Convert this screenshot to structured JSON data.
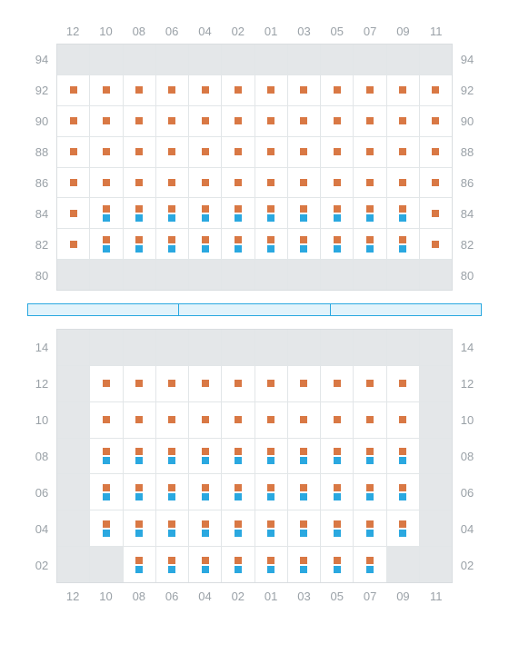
{
  "colors": {
    "orange": "#d97844",
    "blue": "#2aa8e0",
    "gray_cell": "#e4e7e9",
    "grid_border": "#d9dde0",
    "grid_line": "#e2e6e8",
    "label_color": "#9aa1a7",
    "divider_border": "#2aa8e0",
    "divider_fill": "#e2f3fb",
    "background": "#ffffff"
  },
  "columns": [
    "12",
    "10",
    "08",
    "06",
    "04",
    "02",
    "01",
    "03",
    "05",
    "07",
    "09",
    "11"
  ],
  "top": {
    "row_labels": [
      "94",
      "92",
      "90",
      "88",
      "86",
      "84",
      "82",
      "80"
    ],
    "cells": [
      [
        {
          "g": 1
        },
        {
          "g": 1
        },
        {
          "g": 1
        },
        {
          "g": 1
        },
        {
          "g": 1
        },
        {
          "g": 1
        },
        {
          "g": 1
        },
        {
          "g": 1
        },
        {
          "g": 1
        },
        {
          "g": 1
        },
        {
          "g": 1
        },
        {
          "g": 1
        }
      ],
      [
        {
          "m": [
            "o"
          ]
        },
        {
          "m": [
            "o"
          ]
        },
        {
          "m": [
            "o"
          ]
        },
        {
          "m": [
            "o"
          ]
        },
        {
          "m": [
            "o"
          ]
        },
        {
          "m": [
            "o"
          ]
        },
        {
          "m": [
            "o"
          ]
        },
        {
          "m": [
            "o"
          ]
        },
        {
          "m": [
            "o"
          ]
        },
        {
          "m": [
            "o"
          ]
        },
        {
          "m": [
            "o"
          ]
        },
        {
          "m": [
            "o"
          ]
        }
      ],
      [
        {
          "m": [
            "o"
          ]
        },
        {
          "m": [
            "o"
          ]
        },
        {
          "m": [
            "o"
          ]
        },
        {
          "m": [
            "o"
          ]
        },
        {
          "m": [
            "o"
          ]
        },
        {
          "m": [
            "o"
          ]
        },
        {
          "m": [
            "o"
          ]
        },
        {
          "m": [
            "o"
          ]
        },
        {
          "m": [
            "o"
          ]
        },
        {
          "m": [
            "o"
          ]
        },
        {
          "m": [
            "o"
          ]
        },
        {
          "m": [
            "o"
          ]
        }
      ],
      [
        {
          "m": [
            "o"
          ]
        },
        {
          "m": [
            "o"
          ]
        },
        {
          "m": [
            "o"
          ]
        },
        {
          "m": [
            "o"
          ]
        },
        {
          "m": [
            "o"
          ]
        },
        {
          "m": [
            "o"
          ]
        },
        {
          "m": [
            "o"
          ]
        },
        {
          "m": [
            "o"
          ]
        },
        {
          "m": [
            "o"
          ]
        },
        {
          "m": [
            "o"
          ]
        },
        {
          "m": [
            "o"
          ]
        },
        {
          "m": [
            "o"
          ]
        }
      ],
      [
        {
          "m": [
            "o"
          ]
        },
        {
          "m": [
            "o"
          ]
        },
        {
          "m": [
            "o"
          ]
        },
        {
          "m": [
            "o"
          ]
        },
        {
          "m": [
            "o"
          ]
        },
        {
          "m": [
            "o"
          ]
        },
        {
          "m": [
            "o"
          ]
        },
        {
          "m": [
            "o"
          ]
        },
        {
          "m": [
            "o"
          ]
        },
        {
          "m": [
            "o"
          ]
        },
        {
          "m": [
            "o"
          ]
        },
        {
          "m": [
            "o"
          ]
        }
      ],
      [
        {
          "m": [
            "o"
          ]
        },
        {
          "m": [
            "o",
            "b"
          ]
        },
        {
          "m": [
            "o",
            "b"
          ]
        },
        {
          "m": [
            "o",
            "b"
          ]
        },
        {
          "m": [
            "o",
            "b"
          ]
        },
        {
          "m": [
            "o",
            "b"
          ]
        },
        {
          "m": [
            "o",
            "b"
          ]
        },
        {
          "m": [
            "o",
            "b"
          ]
        },
        {
          "m": [
            "o",
            "b"
          ]
        },
        {
          "m": [
            "o",
            "b"
          ]
        },
        {
          "m": [
            "o",
            "b"
          ]
        },
        {
          "m": [
            "o"
          ]
        }
      ],
      [
        {
          "m": [
            "o"
          ]
        },
        {
          "m": [
            "o",
            "b"
          ]
        },
        {
          "m": [
            "o",
            "b"
          ]
        },
        {
          "m": [
            "o",
            "b"
          ]
        },
        {
          "m": [
            "o",
            "b"
          ]
        },
        {
          "m": [
            "o",
            "b"
          ]
        },
        {
          "m": [
            "o",
            "b"
          ]
        },
        {
          "m": [
            "o",
            "b"
          ]
        },
        {
          "m": [
            "o",
            "b"
          ]
        },
        {
          "m": [
            "o",
            "b"
          ]
        },
        {
          "m": [
            "o",
            "b"
          ]
        },
        {
          "m": [
            "o"
          ]
        }
      ],
      [
        {
          "g": 1
        },
        {
          "g": 1
        },
        {
          "g": 1
        },
        {
          "g": 1
        },
        {
          "g": 1
        },
        {
          "g": 1
        },
        {
          "g": 1
        },
        {
          "g": 1
        },
        {
          "g": 1
        },
        {
          "g": 1
        },
        {
          "g": 1
        },
        {
          "g": 1
        }
      ]
    ]
  },
  "divider_segments": 3,
  "bottom": {
    "row_labels": [
      "14",
      "12",
      "10",
      "08",
      "06",
      "04",
      "02"
    ],
    "cells": [
      [
        {
          "g": 1
        },
        {
          "g": 1
        },
        {
          "g": 1
        },
        {
          "g": 1
        },
        {
          "g": 1
        },
        {
          "g": 1
        },
        {
          "g": 1
        },
        {
          "g": 1
        },
        {
          "g": 1
        },
        {
          "g": 1
        },
        {
          "g": 1
        },
        {
          "g": 1
        }
      ],
      [
        {
          "g": 1
        },
        {
          "m": [
            "o"
          ]
        },
        {
          "m": [
            "o"
          ]
        },
        {
          "m": [
            "o"
          ]
        },
        {
          "m": [
            "o"
          ]
        },
        {
          "m": [
            "o"
          ]
        },
        {
          "m": [
            "o"
          ]
        },
        {
          "m": [
            "o"
          ]
        },
        {
          "m": [
            "o"
          ]
        },
        {
          "m": [
            "o"
          ]
        },
        {
          "m": [
            "o"
          ]
        },
        {
          "g": 1
        }
      ],
      [
        {
          "g": 1
        },
        {
          "m": [
            "o"
          ]
        },
        {
          "m": [
            "o"
          ]
        },
        {
          "m": [
            "o"
          ]
        },
        {
          "m": [
            "o"
          ]
        },
        {
          "m": [
            "o"
          ]
        },
        {
          "m": [
            "o"
          ]
        },
        {
          "m": [
            "o"
          ]
        },
        {
          "m": [
            "o"
          ]
        },
        {
          "m": [
            "o"
          ]
        },
        {
          "m": [
            "o"
          ]
        },
        {
          "g": 1
        }
      ],
      [
        {
          "g": 1
        },
        {
          "m": [
            "o",
            "b"
          ]
        },
        {
          "m": [
            "o",
            "b"
          ]
        },
        {
          "m": [
            "o",
            "b"
          ]
        },
        {
          "m": [
            "o",
            "b"
          ]
        },
        {
          "m": [
            "o",
            "b"
          ]
        },
        {
          "m": [
            "o",
            "b"
          ]
        },
        {
          "m": [
            "o",
            "b"
          ]
        },
        {
          "m": [
            "o",
            "b"
          ]
        },
        {
          "m": [
            "o",
            "b"
          ]
        },
        {
          "m": [
            "o",
            "b"
          ]
        },
        {
          "g": 1
        }
      ],
      [
        {
          "g": 1
        },
        {
          "m": [
            "o",
            "b"
          ]
        },
        {
          "m": [
            "o",
            "b"
          ]
        },
        {
          "m": [
            "o",
            "b"
          ]
        },
        {
          "m": [
            "o",
            "b"
          ]
        },
        {
          "m": [
            "o",
            "b"
          ]
        },
        {
          "m": [
            "o",
            "b"
          ]
        },
        {
          "m": [
            "o",
            "b"
          ]
        },
        {
          "m": [
            "o",
            "b"
          ]
        },
        {
          "m": [
            "o",
            "b"
          ]
        },
        {
          "m": [
            "o",
            "b"
          ]
        },
        {
          "g": 1
        }
      ],
      [
        {
          "g": 1
        },
        {
          "m": [
            "o",
            "b"
          ]
        },
        {
          "m": [
            "o",
            "b"
          ]
        },
        {
          "m": [
            "o",
            "b"
          ]
        },
        {
          "m": [
            "o",
            "b"
          ]
        },
        {
          "m": [
            "o",
            "b"
          ]
        },
        {
          "m": [
            "o",
            "b"
          ]
        },
        {
          "m": [
            "o",
            "b"
          ]
        },
        {
          "m": [
            "o",
            "b"
          ]
        },
        {
          "m": [
            "o",
            "b"
          ]
        },
        {
          "m": [
            "o",
            "b"
          ]
        },
        {
          "g": 1
        }
      ],
      [
        {
          "g": 1
        },
        {
          "g": 1
        },
        {
          "m": [
            "o",
            "b"
          ]
        },
        {
          "m": [
            "o",
            "b"
          ]
        },
        {
          "m": [
            "o",
            "b"
          ]
        },
        {
          "m": [
            "o",
            "b"
          ]
        },
        {
          "m": [
            "o",
            "b"
          ]
        },
        {
          "m": [
            "o",
            "b"
          ]
        },
        {
          "m": [
            "o",
            "b"
          ]
        },
        {
          "m": [
            "o",
            "b"
          ]
        },
        {
          "g": 1
        },
        {
          "g": 1
        }
      ]
    ]
  }
}
